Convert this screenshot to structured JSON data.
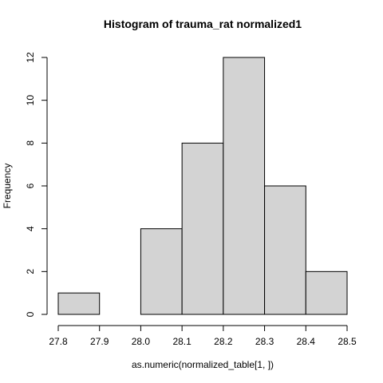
{
  "chart_data": {
    "type": "bar",
    "title": "Histogram of  trauma_rat normalized1",
    "xlabel": "as.numeric(normalized_table[1, ])",
    "ylabel": "Frequency",
    "bins": [
      {
        "x0": 27.8,
        "x1": 27.9,
        "count": 1
      },
      {
        "x0": 27.9,
        "x1": 28.0,
        "count": 0
      },
      {
        "x0": 28.0,
        "x1": 28.1,
        "count": 4
      },
      {
        "x0": 28.1,
        "x1": 28.2,
        "count": 8
      },
      {
        "x0": 28.2,
        "x1": 28.3,
        "count": 12
      },
      {
        "x0": 28.3,
        "x1": 28.4,
        "count": 6
      },
      {
        "x0": 28.4,
        "x1": 28.5,
        "count": 2
      }
    ],
    "xlim": [
      27.8,
      28.5
    ],
    "ylim": [
      0,
      12
    ],
    "x_ticks": [
      "27.8",
      "27.9",
      "28.0",
      "28.1",
      "28.2",
      "28.3",
      "28.4",
      "28.5"
    ],
    "y_ticks": [
      "0",
      "2",
      "4",
      "6",
      "8",
      "10",
      "12"
    ],
    "bar_fill": "#d3d3d3",
    "bar_stroke": "#000000",
    "grid": false,
    "legend": "none"
  }
}
